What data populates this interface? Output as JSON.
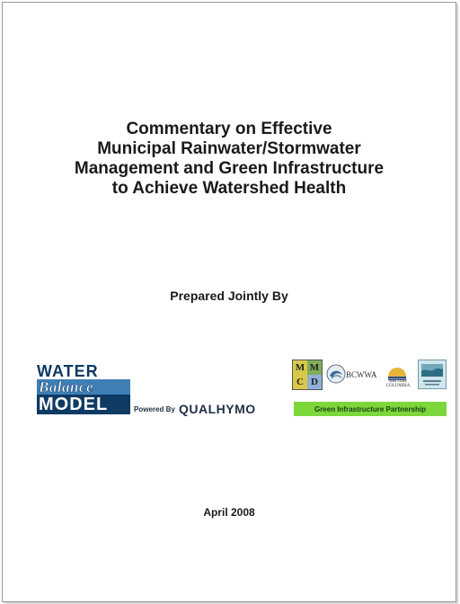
{
  "document": {
    "title_lines": [
      "Commentary on Effective",
      "Municipal Rainwater/Stormwater",
      "Management and Green Infrastructure",
      "to Achieve Watershed Health"
    ],
    "prepared_by": "Prepared Jointly By",
    "date": "April 2008"
  },
  "logos": {
    "water_balance": {
      "line1": "WATER",
      "line2": "Balance",
      "line3": "MODEL",
      "powered_by": "Powered By",
      "qualhymo": "QUALHYMO",
      "colors": {
        "navy": "#0e3a63",
        "blue": "#3f7fb5"
      }
    },
    "partners": {
      "mmcd": [
        "M",
        "M",
        "C",
        "D"
      ],
      "bcwwa": "BCWWA",
      "british_columbia": [
        "BRITISH",
        "COLUMBIA"
      ],
      "wcec_icon": "wcec-logo",
      "bar_text": "Green Infrastructure Partnership",
      "bar_color": "#7dd63a"
    }
  }
}
